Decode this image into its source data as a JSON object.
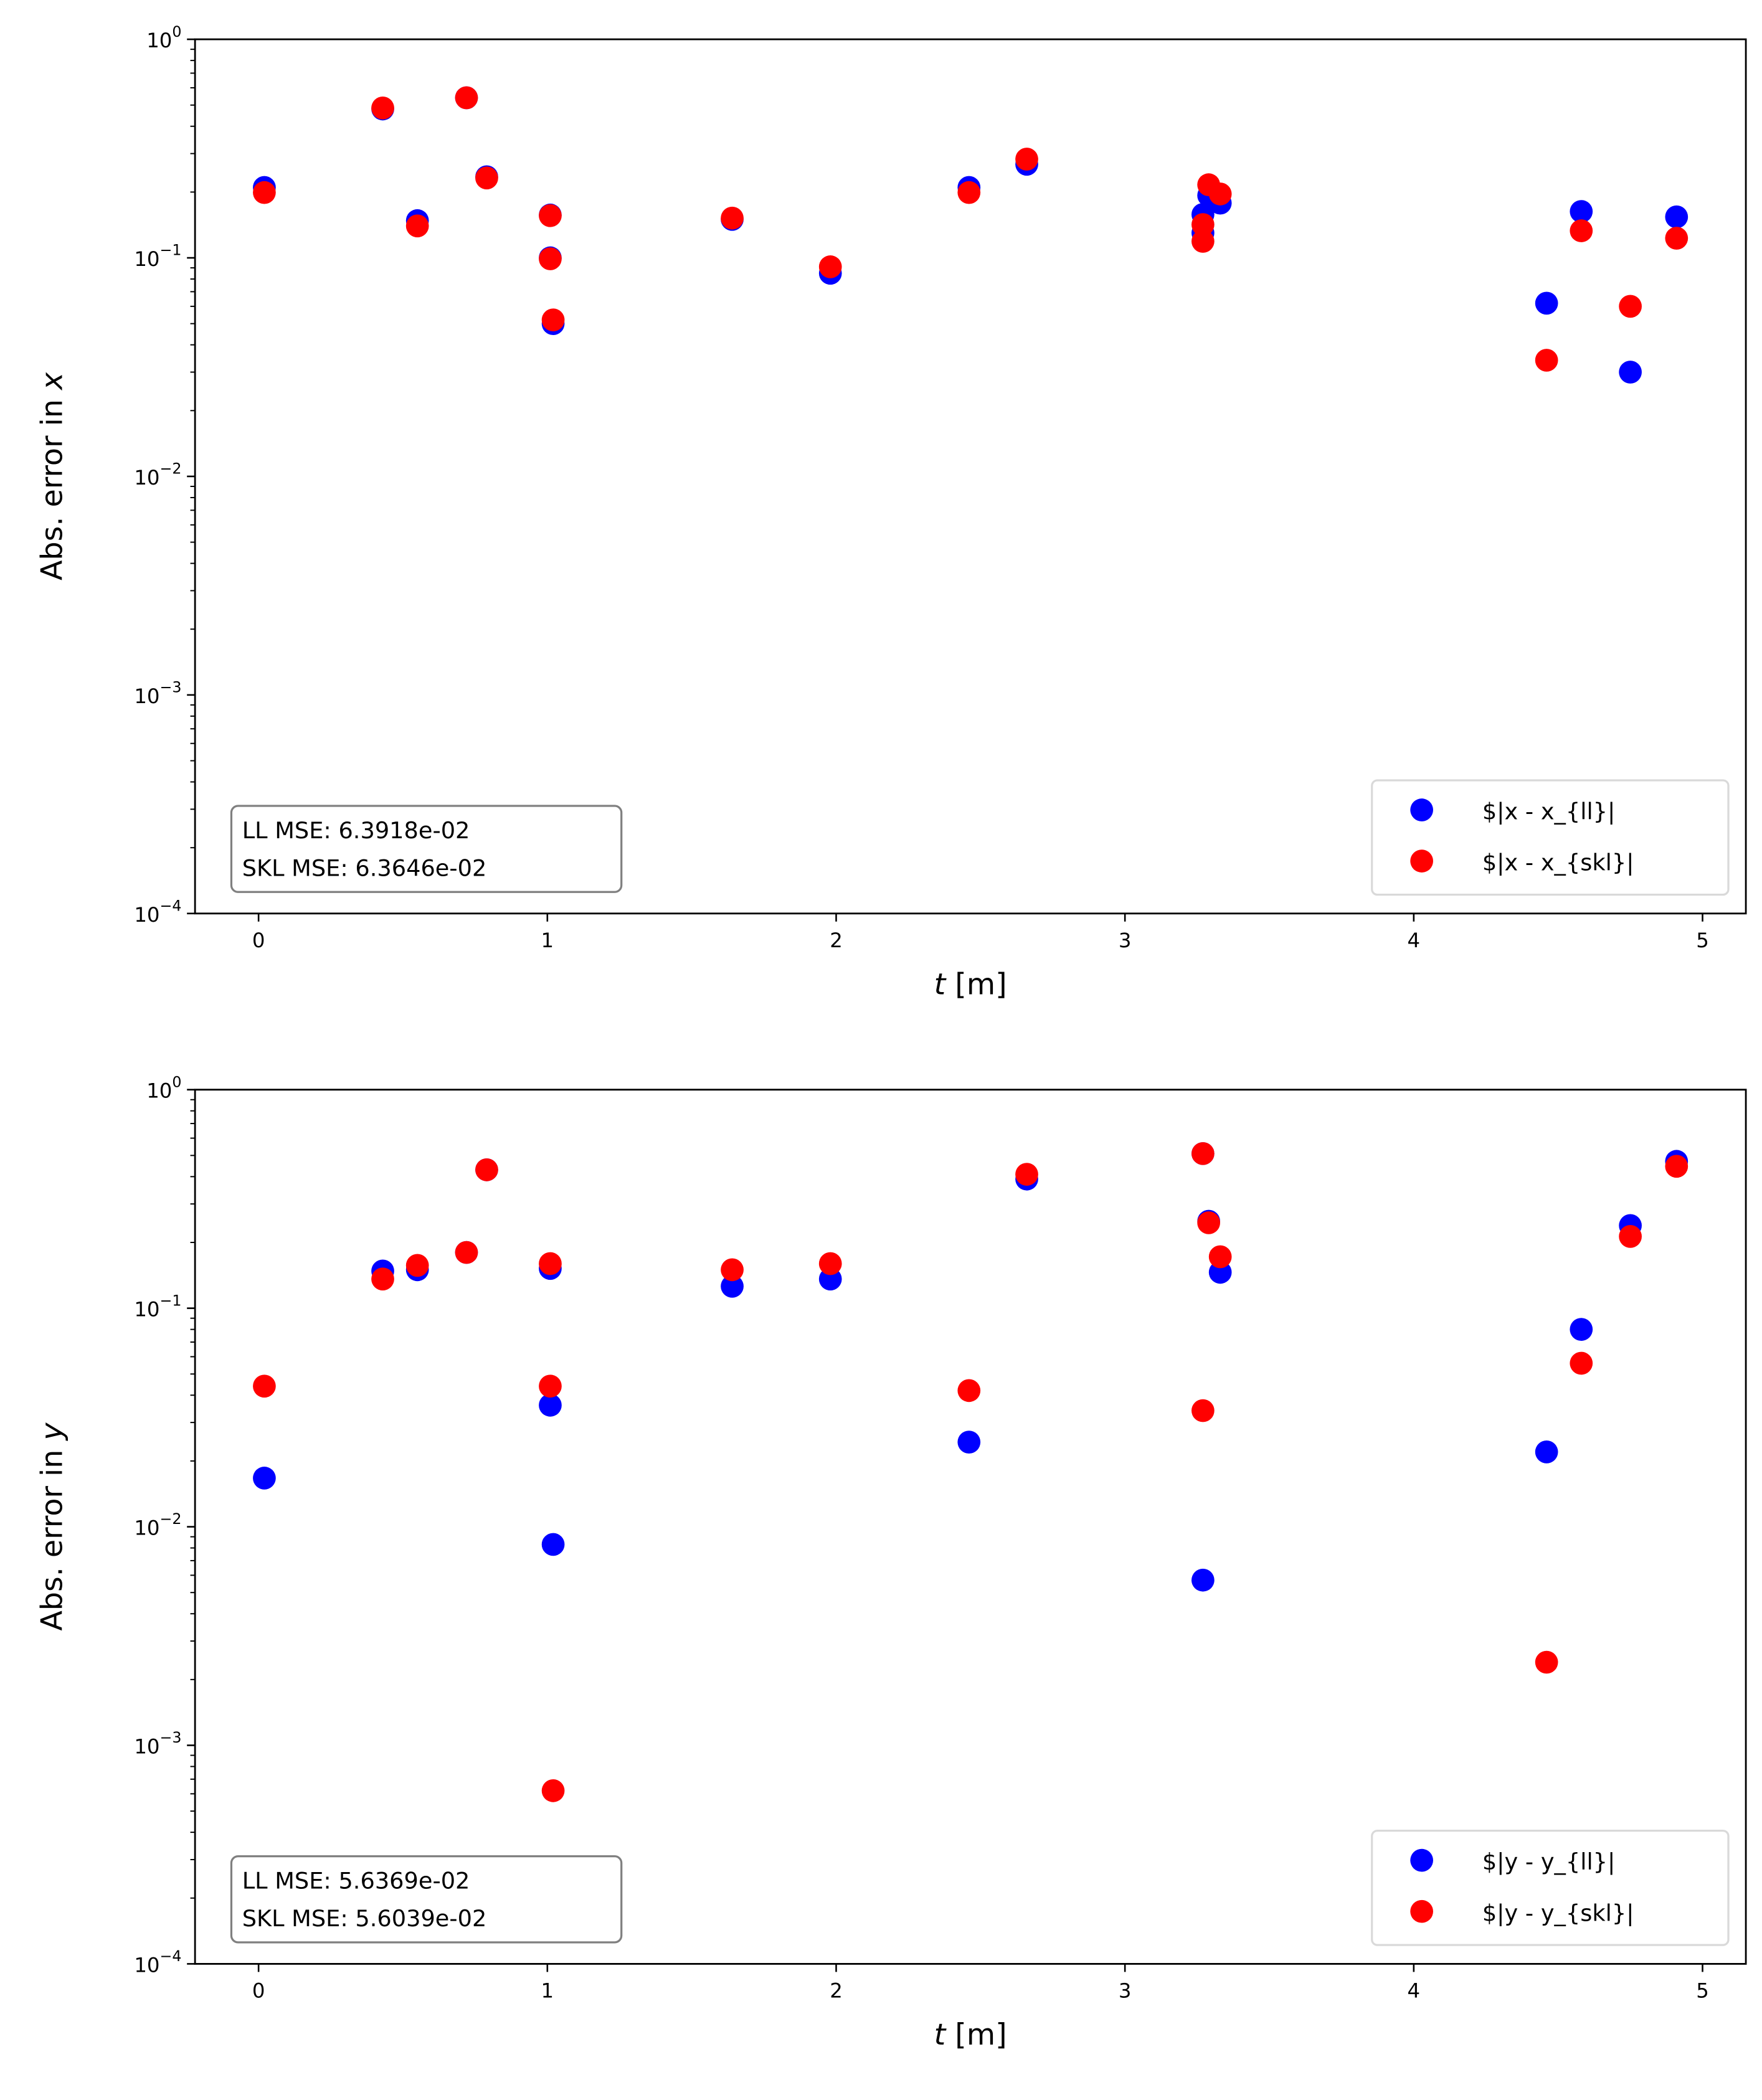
{
  "chart_data": [
    {
      "type": "scatter",
      "title": "",
      "xlabel_italic": "t",
      "xlabel_rest": " [m]",
      "ylabel_main": "Abs. error in ",
      "ylabel_var": "x",
      "yscale": "log",
      "xlim": [
        -0.22,
        5.15
      ],
      "ylim": [
        0.0001,
        1
      ],
      "xticks": [
        "0",
        "1",
        "2",
        "3",
        "4",
        "5"
      ],
      "yticks": [
        {
          "base": "10",
          "exp": "0"
        },
        {
          "base": "10",
          "exp": "−1"
        },
        {
          "base": "10",
          "exp": "−2"
        },
        {
          "base": "10",
          "exp": "−3"
        },
        {
          "base": "10",
          "exp": "−4"
        }
      ],
      "legend_position": "lower-right",
      "stats": [
        "LL MSE: 6.3918e-02",
        "SKL MSE: 6.3646e-02"
      ],
      "series": [
        {
          "name": "$|x - x_{ll}|",
          "color": "#0000ff",
          "x": [
            0.02,
            0.43,
            0.55,
            0.72,
            0.79,
            1.01,
            1.01,
            1.02,
            1.64,
            1.98,
            2.46,
            2.66,
            3.27,
            3.27,
            3.29,
            3.33,
            4.46,
            4.58,
            4.75,
            4.91
          ],
          "y": [
            0.21,
            0.48,
            0.148,
            0.54,
            0.235,
            0.157,
            0.1,
            0.05,
            0.15,
            0.085,
            0.21,
            0.268,
            0.158,
            0.13,
            0.193,
            0.178,
            0.062,
            0.163,
            0.03,
            0.154
          ]
        },
        {
          "name": "$|x - x_{skl}|",
          "color": "#ff0000",
          "x": [
            0.02,
            0.43,
            0.55,
            0.72,
            0.79,
            1.01,
            1.01,
            1.02,
            1.64,
            1.98,
            2.46,
            2.66,
            3.27,
            3.27,
            3.29,
            3.33,
            4.46,
            4.58,
            4.75,
            4.91
          ],
          "y": [
            0.199,
            0.485,
            0.14,
            0.54,
            0.232,
            0.156,
            0.099,
            0.052,
            0.152,
            0.091,
            0.199,
            0.283,
            0.142,
            0.119,
            0.216,
            0.196,
            0.034,
            0.133,
            0.06,
            0.123
          ]
        }
      ]
    },
    {
      "type": "scatter",
      "title": "",
      "xlabel_italic": "t",
      "xlabel_rest": " [m]",
      "ylabel_main": "Abs. error in ",
      "ylabel_var": "y",
      "yscale": "log",
      "xlim": [
        -0.22,
        5.15
      ],
      "ylim": [
        0.0001,
        1
      ],
      "xticks": [
        "0",
        "1",
        "2",
        "3",
        "4",
        "5"
      ],
      "yticks": [
        {
          "base": "10",
          "exp": "0"
        },
        {
          "base": "10",
          "exp": "−1"
        },
        {
          "base": "10",
          "exp": "−2"
        },
        {
          "base": "10",
          "exp": "−3"
        },
        {
          "base": "10",
          "exp": "−4"
        }
      ],
      "legend_position": "lower-right",
      "stats": [
        "LL MSE: 5.6369e-02",
        "SKL MSE: 5.6039e-02"
      ],
      "series": [
        {
          "name": "$|y - y_{ll}|",
          "color": "#0000ff",
          "x": [
            0.02,
            0.43,
            0.55,
            0.72,
            0.79,
            1.01,
            1.01,
            1.02,
            1.64,
            1.98,
            2.46,
            2.66,
            3.27,
            3.27,
            3.29,
            3.33,
            4.46,
            4.58,
            4.75,
            4.91
          ],
          "y": [
            0.0167,
            0.148,
            0.15,
            0.18,
            0.43,
            0.152,
            0.036,
            0.0083,
            0.126,
            0.136,
            0.0244,
            0.39,
            0.51,
            0.0057,
            0.25,
            0.146,
            0.022,
            0.08,
            0.239,
            0.47
          ]
        },
        {
          "name": "$|y - y_{skl}|",
          "color": "#ff0000",
          "x": [
            0.02,
            0.43,
            0.55,
            0.72,
            0.79,
            1.01,
            1.01,
            1.02,
            1.64,
            1.98,
            2.46,
            2.66,
            3.27,
            3.27,
            3.29,
            3.33,
            4.46,
            4.58,
            4.75,
            4.91
          ],
          "y": [
            0.044,
            0.136,
            0.157,
            0.18,
            0.43,
            0.16,
            0.044,
            0.00062,
            0.15,
            0.16,
            0.042,
            0.41,
            0.51,
            0.034,
            0.246,
            0.172,
            0.0024,
            0.056,
            0.213,
            0.446
          ]
        }
      ]
    }
  ]
}
